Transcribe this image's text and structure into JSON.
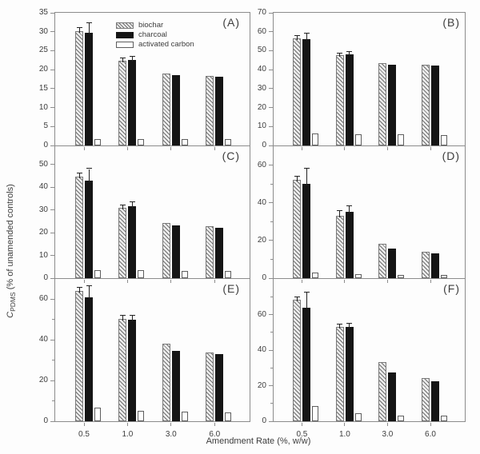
{
  "figure": {
    "y_axis_label": {
      "prefix_italic": "C",
      "subscript": "PDMS",
      "rest": " (% of unamended controls)"
    },
    "x_axis_label": "Amendment Rate (%, w/w)"
  },
  "legend": {
    "items": [
      {
        "label": "biochar",
        "swatch": "hatched"
      },
      {
        "label": "charcoal",
        "swatch": "solid-black"
      },
      {
        "label": "activated carbon",
        "swatch": "white-outline"
      }
    ]
  },
  "colors": {
    "axis": "#8c8c8c",
    "text": "#3d3d3d",
    "charcoal_bar": "#151515",
    "biochar_hatch_line": "#6f6f6f",
    "biochar_hatch_bg": "#ececec",
    "activated_carbon_bar": "#ffffff",
    "background": "#fdfdfd"
  },
  "chart_data": [
    {
      "type": "bar",
      "panel": "(A)",
      "categories": [
        "0.5",
        "1.0",
        "3.0",
        "6.0"
      ],
      "series": [
        {
          "name": "biochar",
          "values": [
            30.2,
            22.4,
            19.0,
            18.4
          ],
          "errors": [
            0.9,
            0.6,
            0,
            0
          ]
        },
        {
          "name": "charcoal",
          "values": [
            29.8,
            22.6,
            18.5,
            18.1
          ],
          "errors": [
            2.4,
            0.9,
            0,
            0
          ]
        },
        {
          "name": "activated carbon",
          "values": [
            1.8,
            1.7,
            1.7,
            1.6
          ],
          "errors": [
            0,
            0,
            0,
            0
          ]
        }
      ],
      "ylim": [
        0,
        35
      ],
      "yticks": [
        0,
        5,
        10,
        15,
        20,
        25,
        30,
        35
      ],
      "yminor": [],
      "xlabel": "",
      "ylabel": "% of unamended controls",
      "grid": false
    },
    {
      "type": "bar",
      "panel": "(B)",
      "categories": [
        "0.5",
        "1.0",
        "3.0",
        "6.0"
      ],
      "series": [
        {
          "name": "biochar",
          "values": [
            56.5,
            47.8,
            43.3,
            42.6
          ],
          "errors": [
            1.2,
            0.6,
            0,
            0
          ]
        },
        {
          "name": "charcoal",
          "values": [
            56.0,
            48.3,
            42.8,
            42.3
          ],
          "errors": [
            3.2,
            1.2,
            0,
            0
          ]
        },
        {
          "name": "activated carbon",
          "values": [
            6.2,
            5.9,
            5.8,
            5.7
          ],
          "errors": [
            0,
            0,
            0,
            0
          ]
        }
      ],
      "ylim": [
        0,
        70
      ],
      "yticks": [
        0,
        10,
        20,
        30,
        40,
        50,
        60,
        70
      ],
      "yminor": [],
      "xlabel": "",
      "ylabel": "% of unamended controls",
      "grid": false
    },
    {
      "type": "bar",
      "panel": "(C)",
      "categories": [
        "0.5",
        "1.0",
        "3.0",
        "6.0"
      ],
      "series": [
        {
          "name": "biochar",
          "values": [
            44.5,
            31.0,
            24.3,
            22.8
          ],
          "errors": [
            1.6,
            1.0,
            0,
            0
          ]
        },
        {
          "name": "charcoal",
          "values": [
            43.0,
            31.5,
            23.3,
            22.2
          ],
          "errors": [
            5.0,
            2.0,
            0,
            0
          ]
        },
        {
          "name": "activated carbon",
          "values": [
            3.7,
            3.4,
            3.3,
            3.1
          ],
          "errors": [
            0,
            0,
            0,
            0
          ]
        }
      ],
      "ylim": [
        0,
        58
      ],
      "yticks": [
        0,
        10,
        20,
        30,
        40,
        50
      ],
      "yminor": [],
      "xlabel": "",
      "ylabel": "% of unamended controls",
      "grid": false
    },
    {
      "type": "bar",
      "panel": "(D)",
      "categories": [
        "0.5",
        "1.0",
        "3.0",
        "6.0"
      ],
      "series": [
        {
          "name": "biochar",
          "values": [
            52.3,
            33.0,
            18.4,
            13.9
          ],
          "errors": [
            1.5,
            2.6,
            0,
            0
          ]
        },
        {
          "name": "charcoal",
          "values": [
            50.2,
            35.3,
            15.9,
            13.1
          ],
          "errors": [
            8.0,
            3.0,
            0,
            0
          ]
        },
        {
          "name": "activated carbon",
          "values": [
            3.0,
            2.2,
            1.9,
            1.6
          ],
          "errors": [
            0,
            0,
            0,
            0
          ]
        }
      ],
      "ylim": [
        0,
        70
      ],
      "yticks": [
        0,
        20,
        40,
        60
      ],
      "yminor": [
        10,
        30,
        50
      ],
      "xlabel": "",
      "ylabel": "% of unamended controls",
      "grid": false
    },
    {
      "type": "bar",
      "panel": "(E)",
      "categories": [
        "0.5",
        "1.0",
        "3.0",
        "6.0"
      ],
      "series": [
        {
          "name": "biochar",
          "values": [
            64.3,
            50.5,
            38.0,
            34.0
          ],
          "errors": [
            1.4,
            1.6,
            0,
            0
          ]
        },
        {
          "name": "charcoal",
          "values": [
            61.0,
            50.0,
            34.8,
            33.2
          ],
          "errors": [
            5.5,
            2.0,
            0,
            0
          ]
        },
        {
          "name": "activated carbon",
          "values": [
            6.6,
            5.3,
            4.8,
            4.5
          ],
          "errors": [
            0,
            0,
            0,
            0
          ]
        }
      ],
      "ylim": [
        0,
        70
      ],
      "yticks": [
        0,
        20,
        40,
        60
      ],
      "yminor": [
        10,
        30,
        50
      ],
      "xlabel": "Amendment Rate (%, w/w)",
      "ylabel": "% of unamended controls",
      "grid": false
    },
    {
      "type": "bar",
      "panel": "(F)",
      "categories": [
        "0.5",
        "1.0",
        "3.0",
        "6.0"
      ],
      "series": [
        {
          "name": "biochar",
          "values": [
            68.3,
            53.0,
            33.5,
            24.3
          ],
          "errors": [
            1.2,
            1.6,
            0,
            0
          ]
        },
        {
          "name": "charcoal",
          "values": [
            64.0,
            53.0,
            27.6,
            22.6
          ],
          "errors": [
            8.5,
            2.0,
            0,
            0
          ]
        },
        {
          "name": "activated carbon",
          "values": [
            8.6,
            4.5,
            3.3,
            3.0
          ],
          "errors": [
            0,
            0,
            0,
            0
          ]
        }
      ],
      "ylim": [
        0,
        80
      ],
      "yticks": [
        0,
        20,
        40,
        60
      ],
      "yminor": [
        10,
        30,
        50,
        70
      ],
      "xlabel": "Amendment Rate (%, w/w)",
      "ylabel": "% of unamended controls",
      "grid": false
    }
  ]
}
